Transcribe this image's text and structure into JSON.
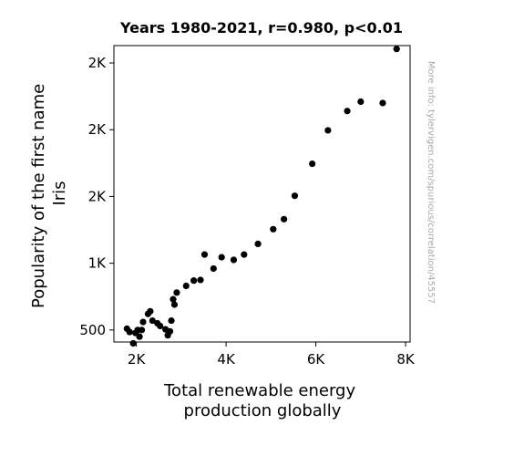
{
  "chart_data": {
    "type": "scatter",
    "title": "Years 1980-2021, r=0.980, p<0.01",
    "xlabel": [
      "Total renewable energy",
      "production globally"
    ],
    "ylabel": [
      "Popularity of the first name",
      "Iris"
    ],
    "watermark": "More info: tylervigen.com/spurious/correlation/45557",
    "xlim": [
      1500,
      8100
    ],
    "ylim": [
      410,
      2630
    ],
    "xticks": [
      {
        "value": 2000,
        "label": "2K"
      },
      {
        "value": 4000,
        "label": "4K"
      },
      {
        "value": 6000,
        "label": "6K"
      },
      {
        "value": 8000,
        "label": "8K"
      }
    ],
    "yticks": [
      {
        "value": 500,
        "label": "500"
      },
      {
        "value": 1000,
        "label": "1K"
      },
      {
        "value": 1500,
        "label": "2K"
      },
      {
        "value": 2000,
        "label": "2K"
      },
      {
        "value": 2500,
        "label": "2K"
      }
    ],
    "grid": false,
    "marker_color": "#000000",
    "points": [
      {
        "x": 1790,
        "y": 510
      },
      {
        "x": 1850,
        "y": 485
      },
      {
        "x": 1930,
        "y": 400
      },
      {
        "x": 1980,
        "y": 478
      },
      {
        "x": 2030,
        "y": 500
      },
      {
        "x": 2070,
        "y": 450
      },
      {
        "x": 2120,
        "y": 500
      },
      {
        "x": 2150,
        "y": 560
      },
      {
        "x": 2260,
        "y": 620
      },
      {
        "x": 2310,
        "y": 640
      },
      {
        "x": 2360,
        "y": 570
      },
      {
        "x": 2470,
        "y": 550
      },
      {
        "x": 2530,
        "y": 530
      },
      {
        "x": 2650,
        "y": 505
      },
      {
        "x": 2700,
        "y": 460
      },
      {
        "x": 2750,
        "y": 490
      },
      {
        "x": 2780,
        "y": 570
      },
      {
        "x": 2820,
        "y": 730
      },
      {
        "x": 2850,
        "y": 690
      },
      {
        "x": 2900,
        "y": 780
      },
      {
        "x": 3110,
        "y": 830
      },
      {
        "x": 3280,
        "y": 870
      },
      {
        "x": 3430,
        "y": 875
      },
      {
        "x": 3520,
        "y": 1065
      },
      {
        "x": 3720,
        "y": 960
      },
      {
        "x": 3900,
        "y": 1045
      },
      {
        "x": 4170,
        "y": 1025
      },
      {
        "x": 4400,
        "y": 1065
      },
      {
        "x": 4710,
        "y": 1145
      },
      {
        "x": 5050,
        "y": 1255
      },
      {
        "x": 5290,
        "y": 1330
      },
      {
        "x": 5530,
        "y": 1505
      },
      {
        "x": 5920,
        "y": 1745
      },
      {
        "x": 6270,
        "y": 1995
      },
      {
        "x": 6700,
        "y": 2140
      },
      {
        "x": 7000,
        "y": 2210
      },
      {
        "x": 7490,
        "y": 2200
      },
      {
        "x": 7800,
        "y": 2605
      }
    ]
  }
}
